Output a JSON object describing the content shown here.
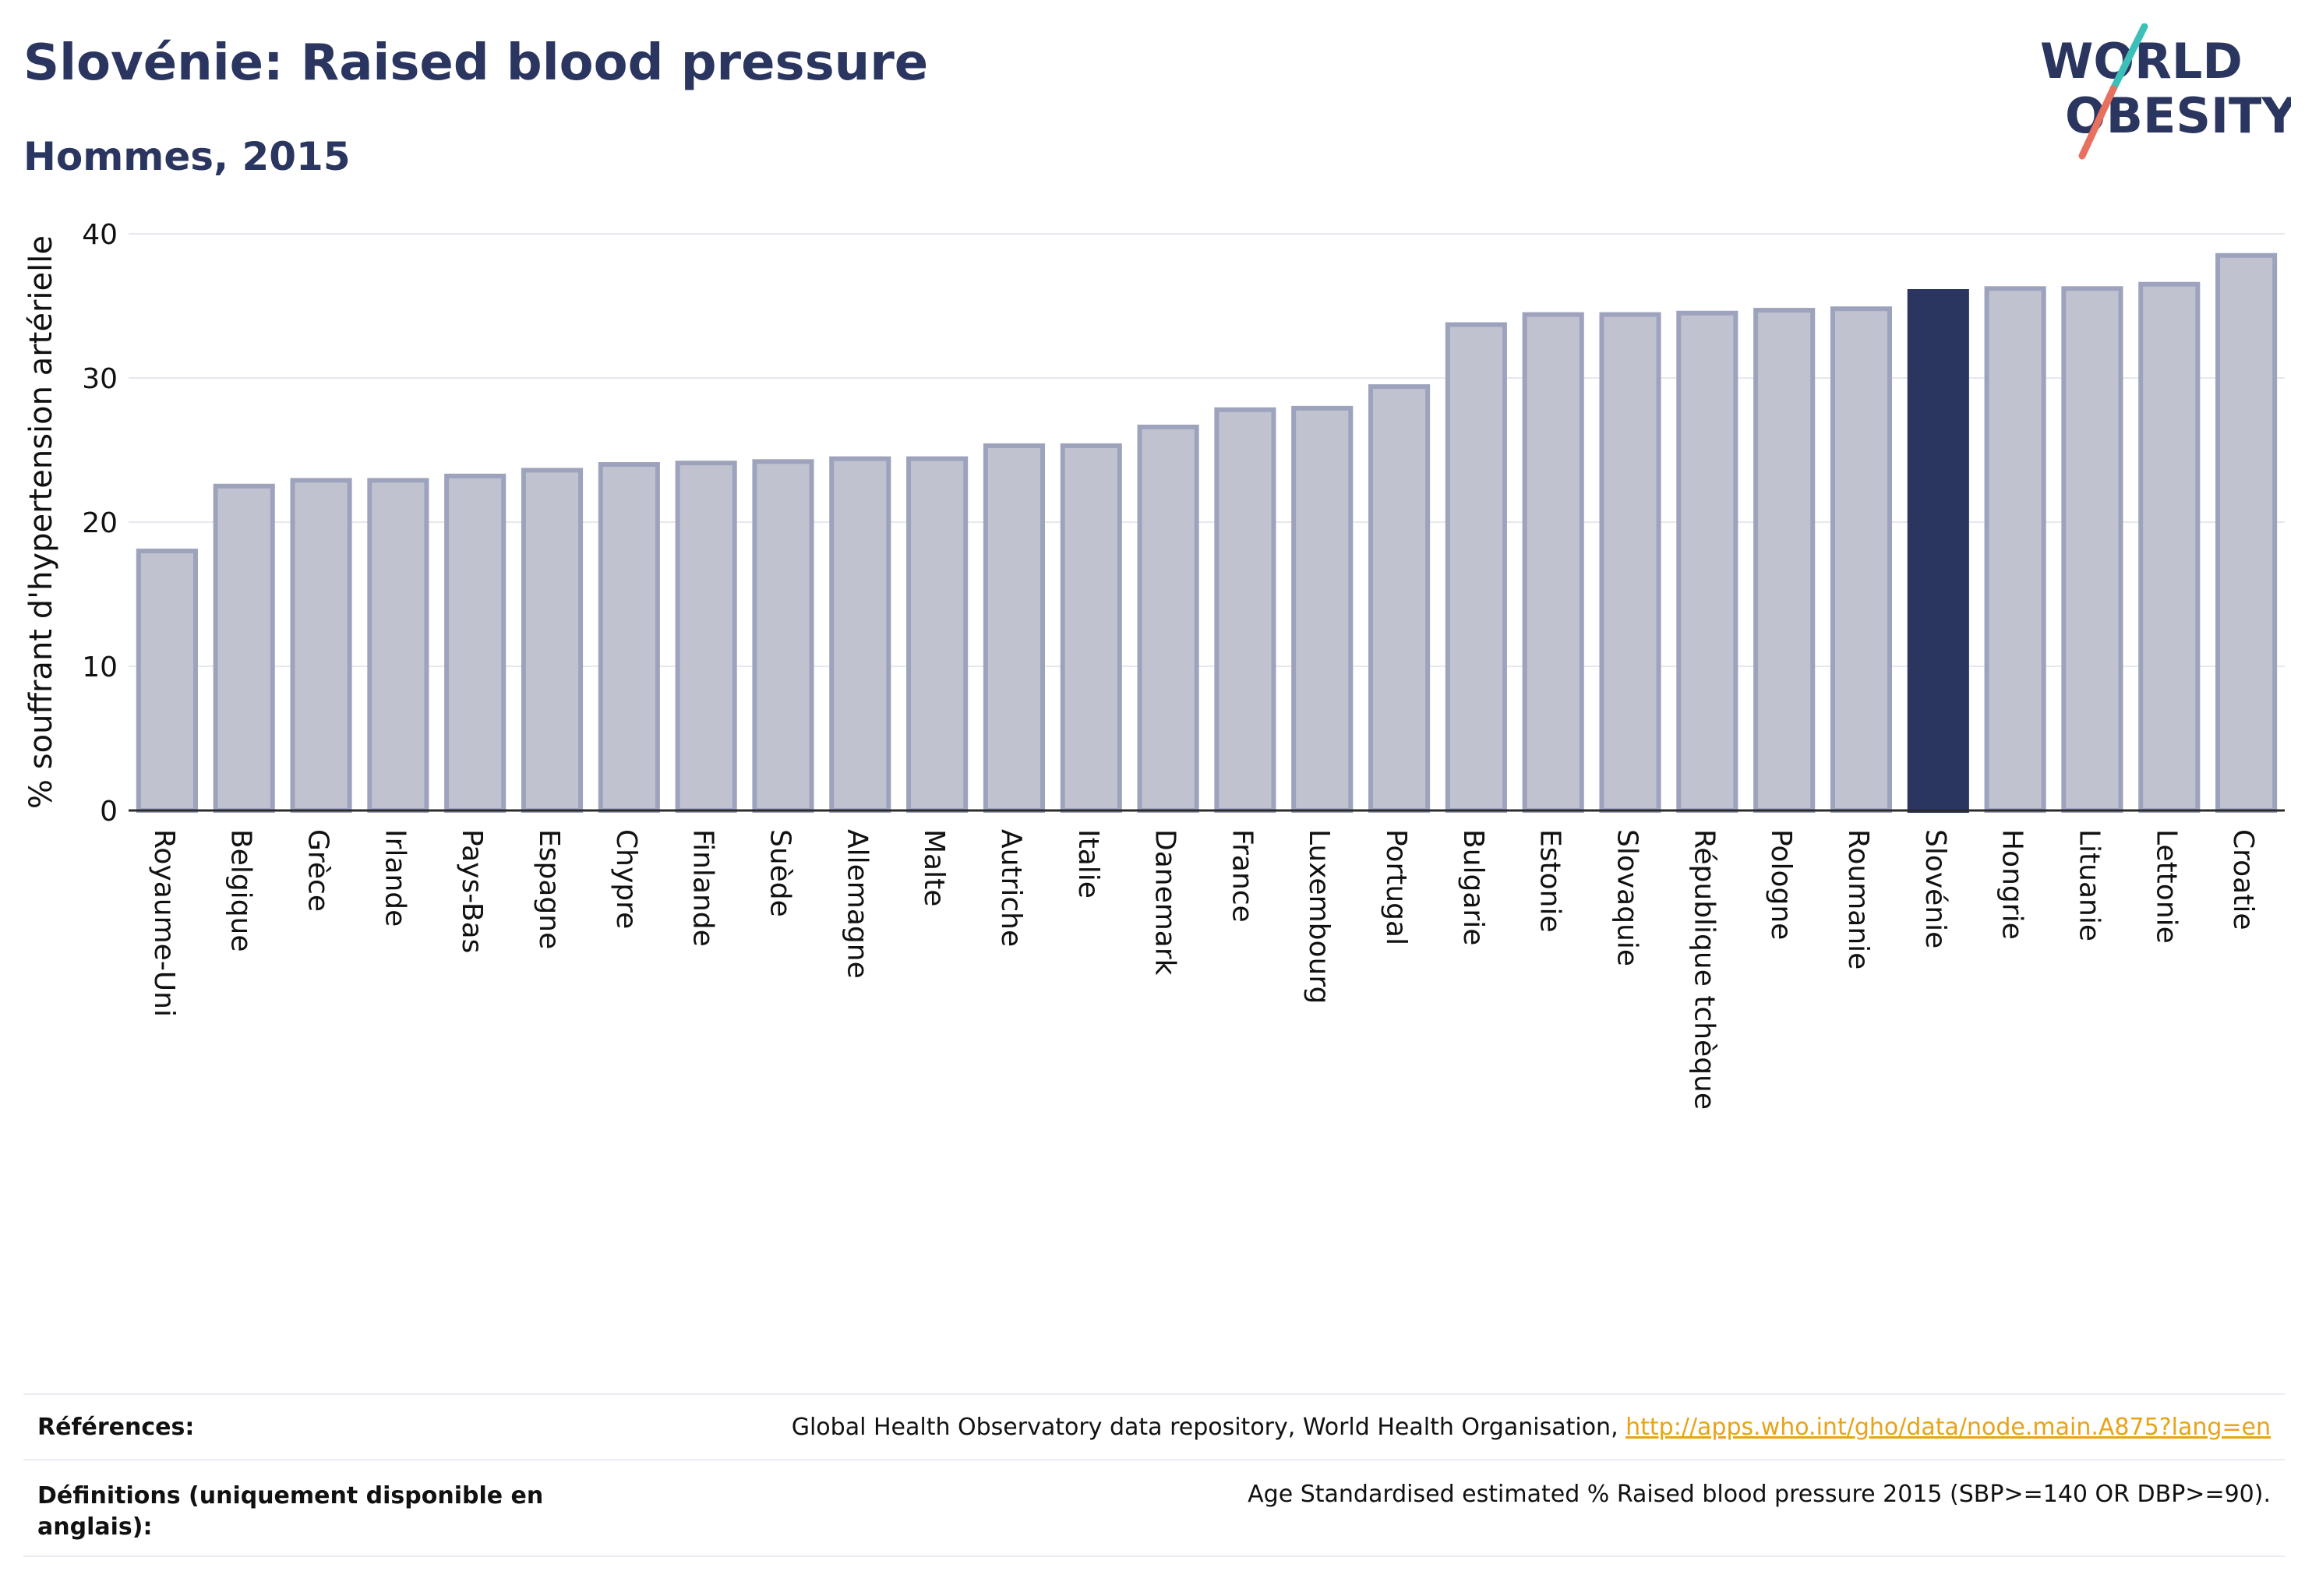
{
  "header": {
    "title": "Slovénie: Raised blood pressure",
    "subtitle": "Hommes, 2015"
  },
  "logo": {
    "line1": "WORLD",
    "line2": "OBESITY",
    "colors": {
      "text": "#2a3560",
      "slash_top": "#3bbfb8",
      "slash_bottom": "#e8705f"
    }
  },
  "chart_data": {
    "type": "bar",
    "title": "Slovénie: Raised blood pressure",
    "subtitle": "Hommes, 2015",
    "xlabel": "",
    "ylabel": "% souffrant d'hypertension artérielle",
    "ylim": [
      0,
      40
    ],
    "yticks": [
      0,
      10,
      20,
      30,
      40
    ],
    "grid": true,
    "highlight": "Slovénie",
    "colors": {
      "bar": "#c0c3cf",
      "bar_border": "#9ea3bd",
      "highlight": "#2a3560"
    },
    "categories": [
      "Royaume-Uni",
      "Belgique",
      "Grèce",
      "Irlande",
      "Pays-Bas",
      "Espagne",
      "Chypre",
      "Finlande",
      "Suède",
      "Allemagne",
      "Malte",
      "Autriche",
      "Italie",
      "Danemark",
      "France",
      "Luxembourg",
      "Portugal",
      "Bulgarie",
      "Estonie",
      "Slovaquie",
      "République tchèque",
      "Pologne",
      "Roumanie",
      "Slovénie",
      "Hongrie",
      "Lituanie",
      "Lettonie",
      "Croatie"
    ],
    "values": [
      18.0,
      22.5,
      22.9,
      22.9,
      23.2,
      23.6,
      24.0,
      24.1,
      24.2,
      24.4,
      24.4,
      25.3,
      25.3,
      26.6,
      27.8,
      27.9,
      29.4,
      33.7,
      34.4,
      34.4,
      34.5,
      34.7,
      34.8,
      36.0,
      36.2,
      36.2,
      36.5,
      38.5
    ]
  },
  "footer": {
    "references_label": "Références:",
    "references_text": "Global Health Observatory data repository, World Health Organisation, ",
    "references_link": "http://apps.who.int/gho/data/node.main.A875?lang=en",
    "definitions_label_line1": "Définitions (uniquement disponible en",
    "definitions_label_line2": "anglais):",
    "definitions_text": "Age Standardised estimated % Raised blood pressure 2015 (SBP>=140 OR DBP>=90)."
  }
}
